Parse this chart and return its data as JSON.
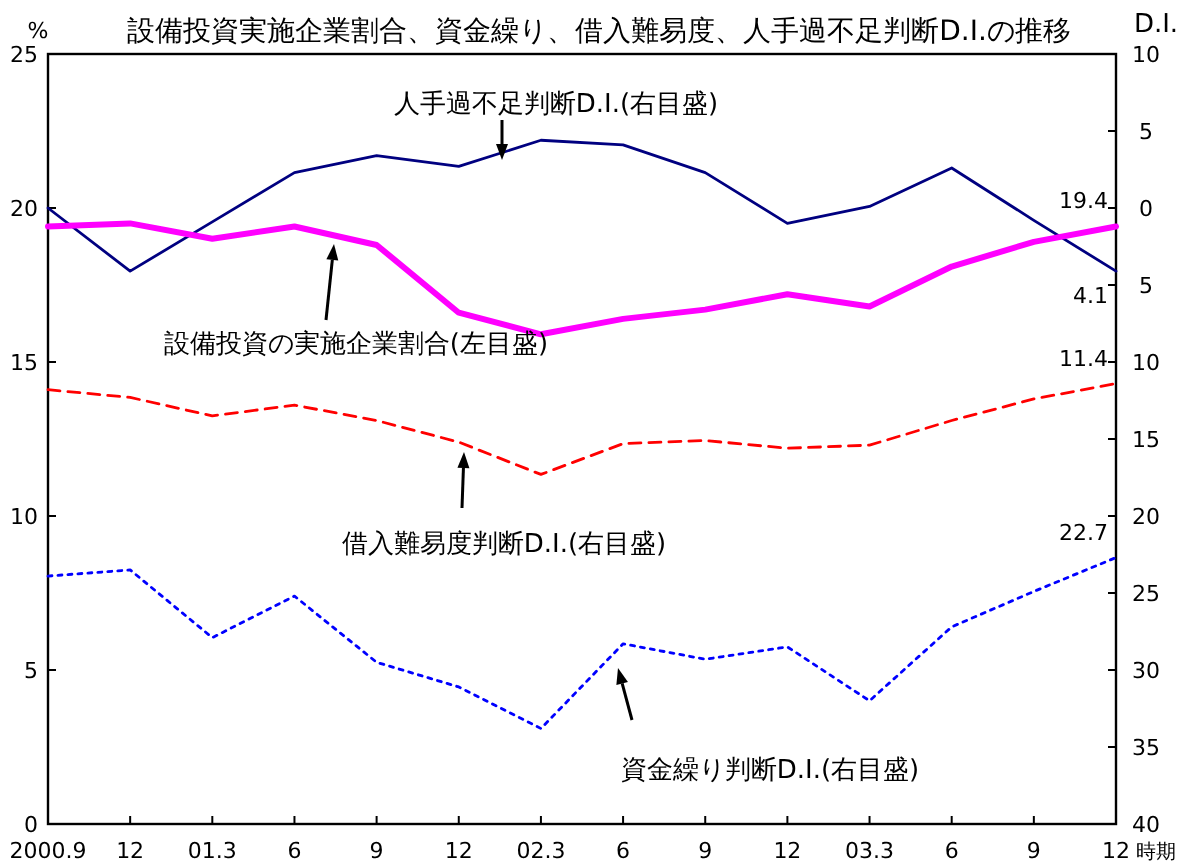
{
  "chart_data": {
    "type": "line",
    "title": "設備投資実施企業割合、資金繰り、借入難易度、人手過不足判断D.I.の推移",
    "xlabel": "時期",
    "ylabel": "%",
    "y2label": "D.I.",
    "categories": [
      "2000.9",
      "12",
      "01.3",
      "6",
      "9",
      "12",
      "02.3",
      "6",
      "9",
      "12",
      "03.3",
      "6",
      "9",
      "12"
    ],
    "ylim": [
      0,
      25
    ],
    "yticks": [
      0,
      5,
      10,
      15,
      20,
      25
    ],
    "y2lim": [
      40,
      -10
    ],
    "y2ticks": [
      {
        "value": -10,
        "label": "10"
      },
      {
        "value": -5,
        "label": "5"
      },
      0,
      5,
      10,
      15,
      20,
      25,
      30,
      35,
      40
    ],
    "grid": false,
    "legend": false,
    "marker": "none",
    "series": [
      {
        "name": "人手過不足判断D.I.(右目盛)",
        "color": "#000080",
        "axis": "y2",
        "line_style": "solid",
        "values": [
          0.0,
          4.1,
          0.9,
          -2.3,
          -3.4,
          -2.7,
          -4.4,
          -4.1,
          -2.3,
          1.0,
          -0.1,
          -2.6,
          0.8,
          4.1
        ],
        "value_labels": [
          null,
          null,
          null,
          null,
          null,
          null,
          null,
          null,
          null,
          null,
          null,
          null,
          null,
          "4.1"
        ]
      },
      {
        "name": "設備投資の実施企業割合(左目盛)",
        "color": "#ff00ff",
        "line_style": "solid",
        "values": [
          19.4,
          19.5,
          19.0,
          19.4,
          18.8,
          16.6,
          15.9,
          16.4,
          16.7,
          17.2,
          16.8,
          18.1,
          18.9,
          19.4
        ],
        "value_labels": [
          null,
          null,
          null,
          null,
          null,
          null,
          null,
          null,
          null,
          null,
          null,
          null,
          null,
          "19.4"
        ]
      },
      {
        "name": "借入難易度判断D.I.(右目盛)",
        "color": "#ff0000",
        "axis": "y2",
        "line_style": "dashed",
        "values": [
          11.8,
          12.3,
          13.5,
          12.8,
          13.8,
          15.2,
          17.3,
          15.3,
          15.1,
          15.6,
          15.4,
          13.8,
          12.4,
          11.4
        ],
        "value_labels": [
          null,
          null,
          null,
          null,
          null,
          null,
          null,
          null,
          null,
          null,
          null,
          null,
          null,
          "11.4"
        ]
      },
      {
        "name": "資金繰り判断D.I.(右目盛)",
        "color": "#0000ff",
        "axis": "y2",
        "line_style": "dotted",
        "values": [
          23.9,
          23.5,
          27.9,
          25.2,
          29.5,
          31.1,
          33.8,
          28.3,
          29.3,
          28.5,
          32.0,
          27.2,
          24.9,
          22.7
        ],
        "value_labels": [
          null,
          null,
          null,
          null,
          null,
          null,
          null,
          null,
          null,
          null,
          null,
          null,
          null,
          "22.7"
        ]
      }
    ]
  }
}
